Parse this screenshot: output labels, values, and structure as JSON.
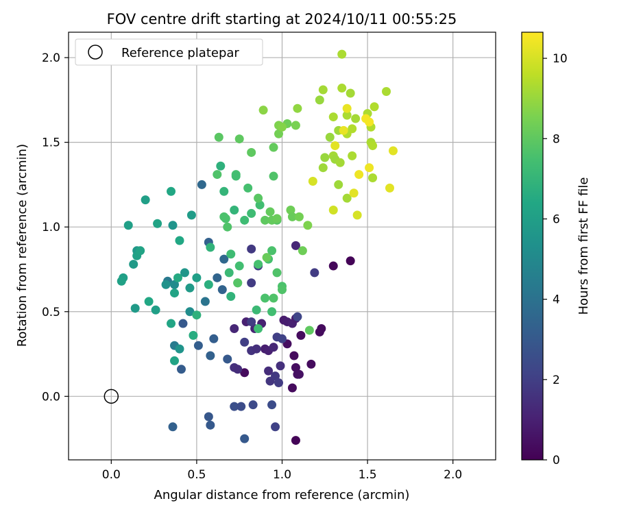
{
  "chart_data": {
    "type": "scatter",
    "title": "FOV centre drift starting at 2024/10/11 00:55:25",
    "xlabel": "Angular distance from reference (arcmin)",
    "ylabel": "Rotation from reference (arcmin)",
    "xlim": [
      -0.25,
      2.25
    ],
    "ylim": [
      -0.375,
      2.15
    ],
    "x_ticks": [
      "0.0",
      "0.5",
      "1.0",
      "1.5",
      "2.0"
    ],
    "y_ticks": [
      "0.0",
      "0.5",
      "1.0",
      "1.5",
      "2.0"
    ],
    "grid": true,
    "legend": {
      "placement": "top-left",
      "entries": [
        "Reference platepar"
      ]
    },
    "reference_point": {
      "x": 0.0,
      "y": 0.0,
      "marker": "open-circle"
    },
    "colorbar": {
      "label": "Hours from first FF file",
      "colormap": "viridis",
      "range": [
        0,
        10.65
      ],
      "ticks": [
        "0",
        "2",
        "4",
        "6",
        "8",
        "10"
      ]
    },
    "series": [
      {
        "values": [
          [
            1.08,
            -0.26,
            0.1
          ],
          [
            0.78,
            0.14,
            0.3
          ],
          [
            1.03,
            0.31,
            0.4
          ],
          [
            1.06,
            0.05,
            0.3
          ],
          [
            1.07,
            0.24,
            0.3
          ],
          [
            1.08,
            0.17,
            0.4
          ],
          [
            1.09,
            0.13,
            0.5
          ],
          [
            1.1,
            0.13,
            0.5
          ],
          [
            1.11,
            0.36,
            0.3
          ],
          [
            1.17,
            0.19,
            0.3
          ],
          [
            1.22,
            0.38,
            0.3
          ],
          [
            1.23,
            0.4,
            0.3
          ],
          [
            1.3,
            0.77,
            0.2
          ],
          [
            1.4,
            0.8,
            0.1
          ],
          [
            0.72,
            0.4,
            1.2
          ],
          [
            0.79,
            0.44,
            1.0
          ],
          [
            0.84,
            0.4,
            1.1
          ],
          [
            0.88,
            0.43,
            1.0
          ],
          [
            0.9,
            0.28,
            0.9
          ],
          [
            0.92,
            0.27,
            1.0
          ],
          [
            0.95,
            0.29,
            1.2
          ],
          [
            1.01,
            0.45,
            0.8
          ],
          [
            1.03,
            0.44,
            0.9
          ],
          [
            1.06,
            0.43,
            1.0
          ],
          [
            1.08,
            0.46,
            0.9
          ],
          [
            1.08,
            0.89,
            1.2
          ],
          [
            0.72,
            0.17,
            1.5
          ],
          [
            0.74,
            0.16,
            1.4
          ],
          [
            0.82,
            0.27,
            1.6
          ],
          [
            0.85,
            0.28,
            1.5
          ],
          [
            0.92,
            0.15,
            1.4
          ],
          [
            0.93,
            0.09,
            1.7
          ],
          [
            0.96,
            0.12,
            1.8
          ],
          [
            0.98,
            0.08,
            1.9
          ],
          [
            0.99,
            0.18,
            1.5
          ],
          [
            0.78,
            0.32,
            2.0
          ],
          [
            0.82,
            0.44,
            1.9
          ],
          [
            0.82,
            0.67,
            1.9
          ],
          [
            0.82,
            0.87,
            1.8
          ],
          [
            0.86,
            0.77,
            1.9
          ],
          [
            0.97,
            0.35,
            2.0
          ],
          [
            1.0,
            0.34,
            2.1
          ],
          [
            1.09,
            0.47,
            2.2
          ],
          [
            1.19,
            0.73,
            1.9
          ],
          [
            0.72,
            -0.06,
            2.6
          ],
          [
            0.76,
            -0.06,
            2.5
          ],
          [
            0.83,
            -0.05,
            2.4
          ],
          [
            0.94,
            -0.05,
            2.5
          ],
          [
            0.96,
            -0.18,
            2.1
          ],
          [
            0.78,
            -0.25,
            3.0
          ],
          [
            0.57,
            -0.12,
            2.9
          ],
          [
            0.58,
            -0.17,
            3.0
          ],
          [
            0.36,
            -0.18,
            3.3
          ],
          [
            0.41,
            0.16,
            3.1
          ],
          [
            0.42,
            0.43,
            3.0
          ],
          [
            0.51,
            0.3,
            3.2
          ],
          [
            0.58,
            0.24,
            3.3
          ],
          [
            0.6,
            0.34,
            3.2
          ],
          [
            0.68,
            0.22,
            3.0
          ],
          [
            0.57,
            0.91,
            3.3
          ],
          [
            0.53,
            1.25,
            3.6
          ],
          [
            0.62,
            0.7,
            3.5
          ],
          [
            0.65,
            0.63,
            3.4
          ],
          [
            0.66,
            0.81,
            3.6
          ],
          [
            0.55,
            0.56,
            4.1
          ],
          [
            0.33,
            0.68,
            4.3
          ],
          [
            0.37,
            0.3,
            4.4
          ],
          [
            0.46,
            0.5,
            5.2
          ],
          [
            0.4,
            0.28,
            5.5
          ],
          [
            0.37,
            0.66,
            5.1
          ],
          [
            0.32,
            0.66,
            5.4
          ],
          [
            0.36,
            1.01,
            5.5
          ],
          [
            0.43,
            0.73,
            5.6
          ],
          [
            0.46,
            0.64,
            5.8
          ],
          [
            0.5,
            0.7,
            6.0
          ],
          [
            0.47,
            1.07,
            5.9
          ],
          [
            0.37,
            0.61,
            6.2
          ],
          [
            0.37,
            0.21,
            6.2
          ],
          [
            0.35,
            0.43,
            6.3
          ],
          [
            0.4,
            0.92,
            6.4
          ],
          [
            0.35,
            1.21,
            6.4
          ],
          [
            0.27,
            1.02,
            6.2
          ],
          [
            0.26,
            0.51,
            6.0
          ],
          [
            0.22,
            0.56,
            6.4
          ],
          [
            0.2,
            1.16,
            6.0
          ],
          [
            0.14,
            0.52,
            5.8
          ],
          [
            0.15,
            0.86,
            5.7
          ],
          [
            0.13,
            0.78,
            5.8
          ],
          [
            0.15,
            0.83,
            6.1
          ],
          [
            0.17,
            0.86,
            6.2
          ],
          [
            0.07,
            0.7,
            6.0
          ],
          [
            0.06,
            0.68,
            6.1
          ],
          [
            0.1,
            1.01,
            6.0
          ],
          [
            0.39,
            0.7,
            6.5
          ],
          [
            0.48,
            0.36,
            6.6
          ],
          [
            0.5,
            0.48,
            6.8
          ],
          [
            0.57,
            0.66,
            6.7
          ],
          [
            0.58,
            0.88,
            6.9
          ],
          [
            0.64,
            1.36,
            6.8
          ],
          [
            0.66,
            1.21,
            7.0
          ],
          [
            0.69,
            0.73,
            7.2
          ],
          [
            0.7,
            0.59,
            6.9
          ],
          [
            0.7,
            0.84,
            7.3
          ],
          [
            0.72,
            1.1,
            7.0
          ],
          [
            0.74,
            0.67,
            7.3
          ],
          [
            0.75,
            0.77,
            7.4
          ],
          [
            0.73,
            1.31,
            7.5
          ],
          [
            0.73,
            1.3,
            7.4
          ],
          [
            0.78,
            1.04,
            7.3
          ],
          [
            0.8,
            1.23,
            7.5
          ],
          [
            0.82,
            1.08,
            7.3
          ],
          [
            0.85,
            0.51,
            7.2
          ],
          [
            0.86,
            0.4,
            7.3
          ],
          [
            0.86,
            0.78,
            7.5
          ],
          [
            0.87,
            1.13,
            7.4
          ],
          [
            0.9,
            0.58,
            7.6
          ],
          [
            0.92,
            0.81,
            7.5
          ],
          [
            0.94,
            0.86,
            7.6
          ],
          [
            0.95,
            0.58,
            7.7
          ],
          [
            0.94,
            0.5,
            7.4
          ],
          [
            0.95,
            1.3,
            7.7
          ],
          [
            0.97,
            0.73,
            7.7
          ],
          [
            0.97,
            1.04,
            7.8
          ],
          [
            1.0,
            0.65,
            7.6
          ],
          [
            1.0,
            0.63,
            7.7
          ],
          [
            0.62,
            1.31,
            7.7
          ],
          [
            0.63,
            1.53,
            7.9
          ],
          [
            0.66,
            1.06,
            7.6
          ],
          [
            0.67,
            1.05,
            7.6
          ],
          [
            0.68,
            1.0,
            7.7
          ],
          [
            0.74,
            0.67,
            7.8
          ],
          [
            0.75,
            1.52,
            8.0
          ],
          [
            0.82,
            1.44,
            8.0
          ],
          [
            0.86,
            1.17,
            7.9
          ],
          [
            0.9,
            1.04,
            8.0
          ],
          [
            0.91,
            0.82,
            8.2
          ],
          [
            0.93,
            1.09,
            8.1
          ],
          [
            0.94,
            1.04,
            8.1
          ],
          [
            0.95,
            1.47,
            8.1
          ],
          [
            0.97,
            1.05,
            8.2
          ],
          [
            0.98,
            1.55,
            8.4
          ],
          [
            1.03,
            1.61,
            8.3
          ],
          [
            1.05,
            1.1,
            8.3
          ],
          [
            1.06,
            1.06,
            8.2
          ],
          [
            1.08,
            1.6,
            8.5
          ],
          [
            1.1,
            1.06,
            8.4
          ],
          [
            1.15,
            1.01,
            8.6
          ],
          [
            1.12,
            0.86,
            8.3
          ],
          [
            1.16,
            0.39,
            8.0
          ],
          [
            0.89,
            1.69,
            8.8
          ],
          [
            0.98,
            1.6,
            8.6
          ],
          [
            1.0,
            1.59,
            8.7
          ],
          [
            1.09,
            1.7,
            8.9
          ],
          [
            1.22,
            1.75,
            9.0
          ],
          [
            1.24,
            1.81,
            9.2
          ],
          [
            1.24,
            1.35,
            9.1
          ],
          [
            1.25,
            1.41,
            9.0
          ],
          [
            1.28,
            1.53,
            9.0
          ],
          [
            1.3,
            1.42,
            9.2
          ],
          [
            1.3,
            1.65,
            9.3
          ],
          [
            1.31,
            1.4,
            9.1
          ],
          [
            1.33,
            1.25,
            9.1
          ],
          [
            1.33,
            1.57,
            9.1
          ],
          [
            1.34,
            1.38,
            9.2
          ],
          [
            1.35,
            2.02,
            9.3
          ],
          [
            1.35,
            1.82,
            9.3
          ],
          [
            1.38,
            1.55,
            9.4
          ],
          [
            1.38,
            1.66,
            9.3
          ],
          [
            1.38,
            1.17,
            9.2
          ],
          [
            1.4,
            1.79,
            9.2
          ],
          [
            1.41,
            1.58,
            9.4
          ],
          [
            1.41,
            1.42,
            9.3
          ],
          [
            1.43,
            1.64,
            9.2
          ],
          [
            1.5,
            1.67,
            9.3
          ],
          [
            1.52,
            1.59,
            9.4
          ],
          [
            1.52,
            1.5,
            9.3
          ],
          [
            1.53,
            1.48,
            9.4
          ],
          [
            1.53,
            1.29,
            9.3
          ],
          [
            1.54,
            1.71,
            9.4
          ],
          [
            1.61,
            1.8,
            9.3
          ],
          [
            1.18,
            1.27,
            10.0
          ],
          [
            1.3,
            1.1,
            9.9
          ],
          [
            1.31,
            1.48,
            10.2
          ],
          [
            1.36,
            1.57,
            10.3
          ],
          [
            1.38,
            1.7,
            10.3
          ],
          [
            1.42,
            1.2,
            10.2
          ],
          [
            1.44,
            1.07,
            10.0
          ],
          [
            1.45,
            1.31,
            10.4
          ],
          [
            1.49,
            1.64,
            10.5
          ],
          [
            1.51,
            1.62,
            10.5
          ],
          [
            1.51,
            1.35,
            10.4
          ],
          [
            1.63,
            1.23,
            10.2
          ],
          [
            1.65,
            1.45,
            10.2
          ]
        ]
      }
    ]
  }
}
